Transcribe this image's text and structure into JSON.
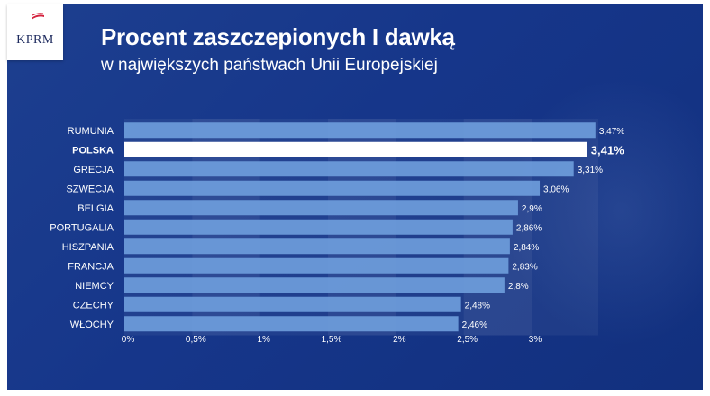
{
  "logo": {
    "text": "KPRM"
  },
  "chart_data": {
    "type": "bar",
    "orientation": "horizontal",
    "title": "Procent zaszczepionych I dawką",
    "subtitle": "w największych państwach Unii Europejskiej",
    "categories": [
      "RUMUNIA",
      "POLSKA",
      "GRECJA",
      "SZWECJA",
      "BELGIA",
      "PORTUGALIA",
      "HISZPANIA",
      "FRANCJA",
      "NIEMCY",
      "CZECHY",
      "WŁOCHY"
    ],
    "values": [
      3.47,
      3.41,
      3.31,
      3.06,
      2.9,
      2.86,
      2.84,
      2.83,
      2.8,
      2.48,
      2.46
    ],
    "value_labels": [
      "3,47%",
      "3,41%",
      "3,31%",
      "3,06%",
      "2,9%",
      "2,86%",
      "2,84%",
      "2,83%",
      "2,8%",
      "2,48%",
      "2,46%"
    ],
    "highlight": "POLSKA",
    "xticks": [
      0,
      0.5,
      1,
      1.5,
      2,
      2.5,
      3
    ],
    "xtick_labels": [
      "0%",
      "0,5%",
      "1%",
      "1,5%",
      "2%",
      "2,5%",
      "3%"
    ],
    "xlim": [
      0,
      3.5
    ],
    "grid": "vertical bands",
    "colors": {
      "bar": "#6f9fdd",
      "highlight_bar": "#ffffff",
      "text": "#ffffff",
      "background": "#17378a"
    }
  }
}
